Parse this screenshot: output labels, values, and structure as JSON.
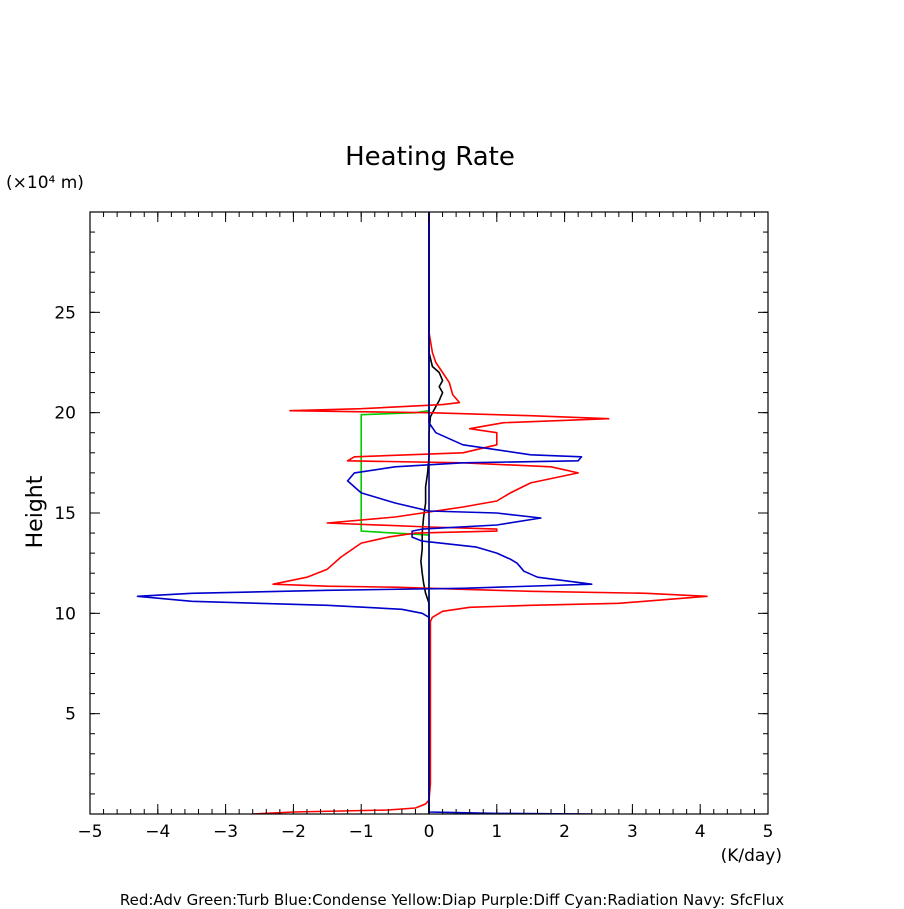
{
  "chart_data": {
    "type": "line",
    "title": "Heating Rate",
    "xlabel": "(K/day)",
    "ylabel": "Height",
    "y_unit_label": "(×10⁴ m)",
    "xlim": [
      -5,
      5
    ],
    "ylim": [
      0,
      30
    ],
    "x_ticks": [
      -5,
      -4,
      -3,
      -2,
      -1,
      0,
      1,
      2,
      3,
      4,
      5
    ],
    "x_tick_labels": [
      "−5",
      "−4",
      "−3",
      "−2",
      "−1",
      "0",
      "1",
      "2",
      "3",
      "4",
      "5"
    ],
    "y_ticks": [
      5,
      10,
      15,
      20,
      25
    ],
    "y_tick_labels": [
      "5",
      "10",
      "15",
      "20",
      "25"
    ],
    "caption": "Red:Adv  Green:Turb  Blue:Condense  Yellow:Diap  Purple:Diff  Cyan:Radiation  Navy: SfcFlux",
    "series": [
      {
        "color": "#00cc00",
        "points": [
          [
            0,
            0
          ],
          [
            0,
            13.9
          ],
          [
            -0.25,
            13.95
          ],
          [
            -1.0,
            14.1
          ],
          [
            -1.0,
            19.9
          ],
          [
            -0.2,
            20.0
          ],
          [
            0,
            20.1
          ],
          [
            0,
            30
          ]
        ]
      },
      {
        "color": "#000000",
        "points": [
          [
            0,
            0
          ],
          [
            0,
            10.5
          ],
          [
            -0.05,
            11.0
          ],
          [
            -0.08,
            11.5
          ],
          [
            -0.1,
            12.0
          ],
          [
            -0.12,
            12.6
          ],
          [
            -0.1,
            13.2
          ],
          [
            -0.1,
            14.0
          ],
          [
            -0.08,
            14.8
          ],
          [
            -0.05,
            15.5
          ],
          [
            -0.05,
            16.3
          ],
          [
            -0.02,
            17.0
          ],
          [
            0,
            17.8
          ],
          [
            0,
            19.0
          ],
          [
            0.02,
            19.8
          ],
          [
            0.1,
            20.3
          ],
          [
            0.15,
            20.6
          ],
          [
            0.2,
            21.0
          ],
          [
            0.15,
            21.3
          ],
          [
            0.2,
            21.6
          ],
          [
            0.15,
            22.0
          ],
          [
            0.05,
            22.3
          ],
          [
            0,
            23
          ],
          [
            0,
            30
          ]
        ]
      },
      {
        "color": "#ff0000",
        "points": [
          [
            -2.6,
            0
          ],
          [
            -2.0,
            0.1
          ],
          [
            -0.6,
            0.2
          ],
          [
            -0.2,
            0.3
          ],
          [
            -0.05,
            0.5
          ],
          [
            0,
            0.7
          ],
          [
            0.02,
            1.5
          ],
          [
            0.02,
            9.6
          ],
          [
            0.05,
            9.8
          ],
          [
            0.2,
            10.1
          ],
          [
            0.6,
            10.3
          ],
          [
            1.5,
            10.4
          ],
          [
            2.8,
            10.5
          ],
          [
            4.1,
            10.85
          ],
          [
            3.2,
            11.0
          ],
          [
            1.5,
            11.1
          ],
          [
            0.5,
            11.2
          ],
          [
            -0.5,
            11.3
          ],
          [
            -1.5,
            11.35
          ],
          [
            -2.3,
            11.45
          ],
          [
            -1.8,
            11.8
          ],
          [
            -1.5,
            12.2
          ],
          [
            -1.3,
            12.8
          ],
          [
            -1.0,
            13.5
          ],
          [
            -0.6,
            13.8
          ],
          [
            -0.2,
            14.0
          ],
          [
            1.0,
            14.1
          ],
          [
            1.0,
            14.2
          ],
          [
            0,
            14.3
          ],
          [
            -1.5,
            14.5
          ],
          [
            -0.5,
            14.8
          ],
          [
            0.5,
            15.3
          ],
          [
            1.0,
            15.6
          ],
          [
            1.2,
            16.0
          ],
          [
            1.5,
            16.5
          ],
          [
            2.2,
            17.0
          ],
          [
            1.8,
            17.3
          ],
          [
            0.5,
            17.5
          ],
          [
            -1.2,
            17.6
          ],
          [
            -1.1,
            17.8
          ],
          [
            0.5,
            18.0
          ],
          [
            1.0,
            18.4
          ],
          [
            1.0,
            19.0
          ],
          [
            0.6,
            19.2
          ],
          [
            1.1,
            19.5
          ],
          [
            2.65,
            19.7
          ],
          [
            1.5,
            19.85
          ],
          [
            0,
            20.0
          ],
          [
            -2.05,
            20.1
          ],
          [
            -1.0,
            20.2
          ],
          [
            0.2,
            20.4
          ],
          [
            0.45,
            20.5
          ],
          [
            0.35,
            20.9
          ],
          [
            0.3,
            21.5
          ],
          [
            0.2,
            22.0
          ],
          [
            0.1,
            22.5
          ],
          [
            0.05,
            23.0
          ],
          [
            0,
            24.0
          ],
          [
            0,
            30
          ]
        ]
      },
      {
        "color": "#0000cc",
        "points": [
          [
            2.4,
            0
          ],
          [
            1.0,
            0.03
          ],
          [
            0.3,
            0.08
          ],
          [
            0,
            0.1
          ],
          [
            0,
            9.8
          ],
          [
            -0.1,
            10.0
          ],
          [
            -0.4,
            10.2
          ],
          [
            -1.5,
            10.4
          ],
          [
            -3.5,
            10.6
          ],
          [
            -4.3,
            10.85
          ],
          [
            -3.5,
            11.0
          ],
          [
            -1.5,
            11.15
          ],
          [
            0.5,
            11.25
          ],
          [
            2.4,
            11.45
          ],
          [
            1.6,
            11.8
          ],
          [
            1.4,
            12.1
          ],
          [
            1.3,
            12.5
          ],
          [
            1.2,
            12.7
          ],
          [
            1.0,
            13.0
          ],
          [
            0.7,
            13.3
          ],
          [
            -0.1,
            13.6
          ],
          [
            -0.25,
            13.8
          ],
          [
            -0.25,
            14.1
          ],
          [
            -0.1,
            14.2
          ],
          [
            1.0,
            14.4
          ],
          [
            1.65,
            14.75
          ],
          [
            1.0,
            15.0
          ],
          [
            0,
            15.1
          ],
          [
            -0.5,
            15.5
          ],
          [
            -1.0,
            16.0
          ],
          [
            -1.2,
            16.6
          ],
          [
            -1.1,
            17.0
          ],
          [
            -0.5,
            17.3
          ],
          [
            0.5,
            17.5
          ],
          [
            2.2,
            17.6
          ],
          [
            2.25,
            17.8
          ],
          [
            1.5,
            17.9
          ],
          [
            0.5,
            18.4
          ],
          [
            0.1,
            19.0
          ],
          [
            0,
            19.5
          ],
          [
            0,
            30
          ]
        ]
      },
      {
        "color": "#000080",
        "points": [
          [
            0,
            0
          ],
          [
            0,
            30
          ]
        ]
      }
    ]
  }
}
